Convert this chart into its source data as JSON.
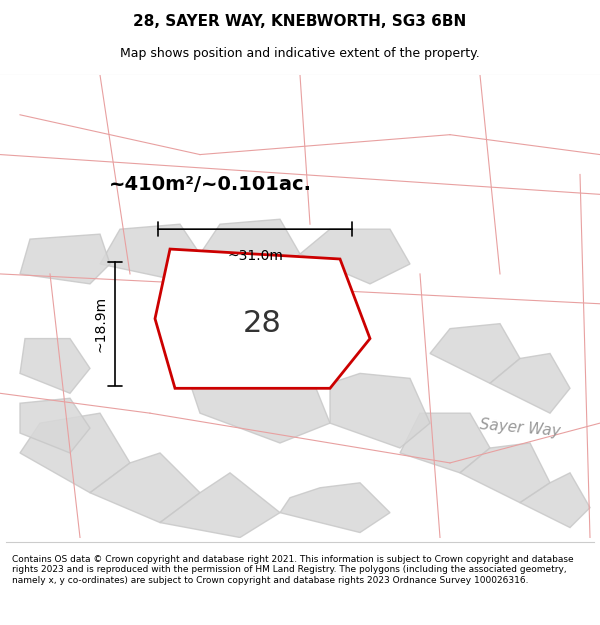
{
  "title": "28, SAYER WAY, KNEBWORTH, SG3 6BN",
  "subtitle": "Map shows position and indicative extent of the property.",
  "area_label": "~410m²/~0.101ac.",
  "number_label": "28",
  "dim_width": "~31.0m",
  "dim_height": "~18.9m",
  "sayer_way_label": "Sayer Way",
  "footer": "Contains OS data © Crown copyright and database right 2021. This information is subject to Crown copyright and database rights 2023 and is reproduced with the permission of HM Land Registry. The polygons (including the associated geometry, namely x, y co-ordinates) are subject to Crown copyright and database rights 2023 Ordnance Survey 100026316.",
  "bg_color": "#f5f5f0",
  "map_bg": "#f5f5f0",
  "highlight_poly_color": "#cc0000",
  "highlight_poly_fill": "none",
  "gray_poly_color": "#c8c8c8",
  "gray_poly_fill": "#d8d8d8",
  "dim_line_color": "#000000",
  "road_label_color": "#888888",
  "title_fontsize": 11,
  "subtitle_fontsize": 9,
  "area_fontsize": 14,
  "number_fontsize": 22,
  "dim_fontsize": 10,
  "footer_fontsize": 6.5
}
